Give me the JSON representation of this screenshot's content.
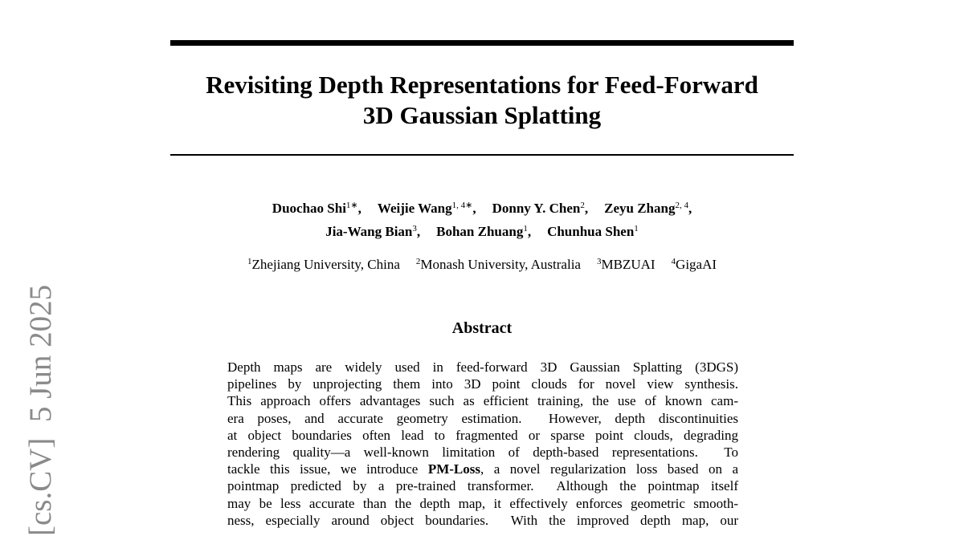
{
  "side_stamp": "[cs.CV]  5 Jun 2025",
  "title": [
    "Revisiting Depth Representations for Feed-Forward",
    "3D Gaussian Splatting"
  ],
  "authors": [
    [
      {
        "name": "Duochao Shi",
        "sup": "1∗",
        "sep": ","
      },
      {
        "name": "Weijie Wang",
        "sup": "1, 4∗",
        "sep": ","
      },
      {
        "name": "Donny Y. Chen",
        "sup": "2",
        "sep": ","
      },
      {
        "name": "Zeyu Zhang",
        "sup": "2, 4",
        "sep": ","
      }
    ],
    [
      {
        "name": "Jia-Wang Bian",
        "sup": "3",
        "sep": ","
      },
      {
        "name": "Bohan Zhuang",
        "sup": "1",
        "sep": ","
      },
      {
        "name": "Chunhua Shen",
        "sup": "1"
      }
    ]
  ],
  "affiliations": [
    {
      "sup": "1",
      "name": "Zhejiang University, China"
    },
    {
      "sup": "2",
      "name": "Monash University, Australia"
    },
    {
      "sup": "3",
      "name": "MBZUAI"
    },
    {
      "sup": "4",
      "name": "GigaAI"
    }
  ],
  "abstract": {
    "heading": "Abstract",
    "lines": [
      [
        {
          "text": "Depth maps are widely used in feed-forward 3D Gaussian Splatting (3DGS)"
        }
      ],
      [
        {
          "text": "pipelines by unprojecting them into 3D point clouds for novel view synthesis."
        }
      ],
      [
        {
          "text": "This approach offers advantages such as efficient training, the use of known cam-"
        }
      ],
      [
        {
          "text": "era poses, and accurate geometry estimation.  However, depth discontinuities"
        }
      ],
      [
        {
          "text": "at object boundaries often lead to fragmented or sparse point clouds, degrading"
        }
      ],
      [
        {
          "text": "rendering quality—a well-known limitation of depth-based representations.  To"
        }
      ],
      [
        {
          "text": "tackle this issue, we introduce "
        },
        {
          "text": "PM-Loss",
          "bold": true
        },
        {
          "text": ", a novel regularization loss based on a"
        }
      ],
      [
        {
          "text": "pointmap predicted by a pre-trained transformer.  Although the pointmap itself"
        }
      ],
      [
        {
          "text": "may be less accurate than the depth map, it effectively enforces geometric smooth-"
        }
      ],
      [
        {
          "text": "ness, especially around object boundaries.  With the improved depth map, our"
        }
      ]
    ]
  }
}
